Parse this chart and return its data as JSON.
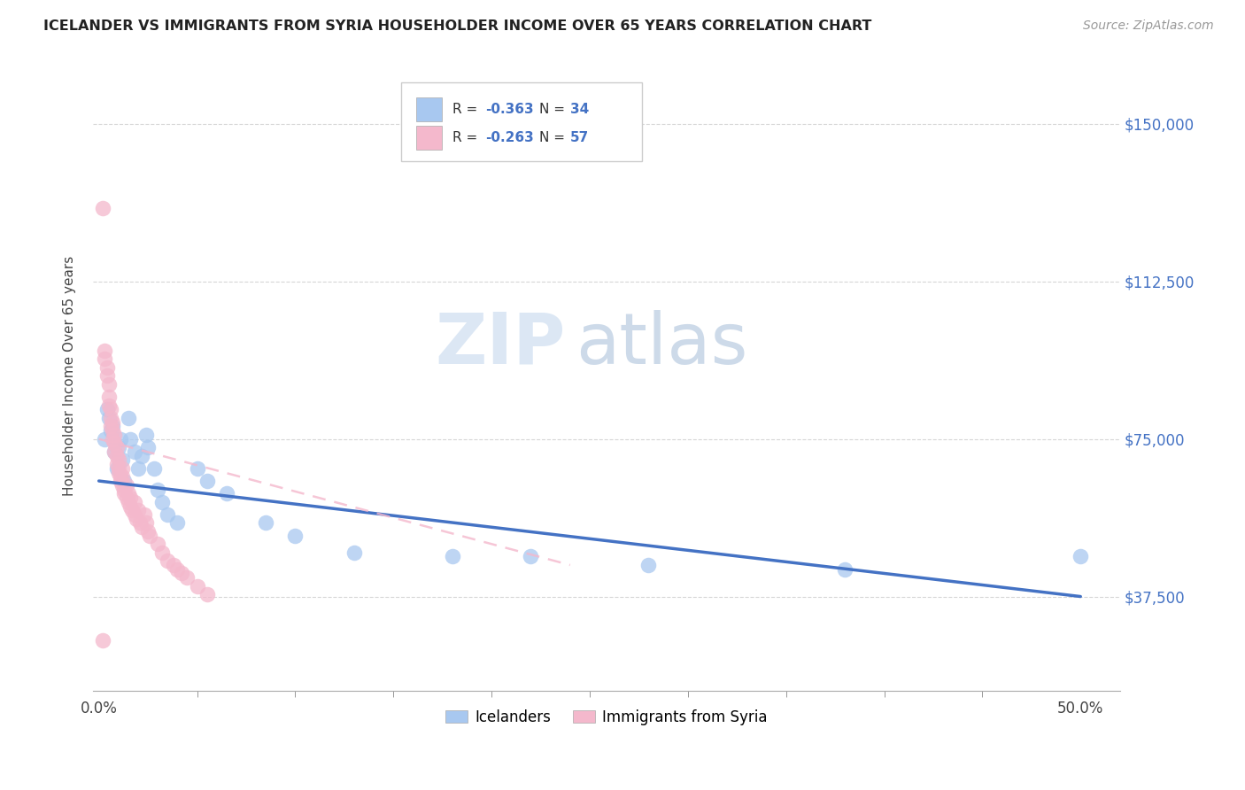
{
  "title": "ICELANDER VS IMMIGRANTS FROM SYRIA HOUSEHOLDER INCOME OVER 65 YEARS CORRELATION CHART",
  "source": "Source: ZipAtlas.com",
  "ylabel": "Householder Income Over 65 years",
  "xlabel_ticks": [
    "0.0%",
    "50.0%"
  ],
  "xlabel_vals": [
    0.0,
    0.5
  ],
  "ytick_labels": [
    "$150,000",
    "$112,500",
    "$75,000",
    "$37,500"
  ],
  "ytick_vals": [
    150000,
    112500,
    75000,
    37500
  ],
  "ylim": [
    15000,
    165000
  ],
  "xlim": [
    -0.003,
    0.52
  ],
  "legend_r_blue": "-0.363",
  "legend_n_blue": "34",
  "legend_r_pink": "-0.263",
  "legend_n_pink": "57",
  "legend_label_blue": "Icelanders",
  "legend_label_pink": "Immigrants from Syria",
  "blue_color": "#a8c8f0",
  "pink_color": "#f4b8cc",
  "blue_line_color": "#4472c4",
  "pink_line_color": "#f4b8cc",
  "watermark_zip": "ZIP",
  "watermark_atlas": "atlas",
  "blue_x": [
    0.003,
    0.004,
    0.005,
    0.006,
    0.007,
    0.008,
    0.009,
    0.01,
    0.011,
    0.012,
    0.013,
    0.015,
    0.016,
    0.018,
    0.02,
    0.022,
    0.024,
    0.025,
    0.028,
    0.03,
    0.032,
    0.035,
    0.04,
    0.05,
    0.055,
    0.065,
    0.085,
    0.1,
    0.13,
    0.18,
    0.22,
    0.28,
    0.38,
    0.5
  ],
  "blue_y": [
    75000,
    82000,
    80000,
    77000,
    78000,
    72000,
    68000,
    73000,
    75000,
    70000,
    65000,
    80000,
    75000,
    72000,
    68000,
    71000,
    76000,
    73000,
    68000,
    63000,
    60000,
    57000,
    55000,
    68000,
    65000,
    62000,
    55000,
    52000,
    48000,
    47000,
    47000,
    45000,
    44000,
    47000
  ],
  "pink_x": [
    0.002,
    0.003,
    0.003,
    0.004,
    0.004,
    0.005,
    0.005,
    0.005,
    0.006,
    0.006,
    0.006,
    0.007,
    0.007,
    0.007,
    0.008,
    0.008,
    0.008,
    0.009,
    0.009,
    0.009,
    0.01,
    0.01,
    0.01,
    0.011,
    0.011,
    0.012,
    0.012,
    0.012,
    0.013,
    0.013,
    0.014,
    0.014,
    0.015,
    0.015,
    0.016,
    0.016,
    0.017,
    0.018,
    0.018,
    0.019,
    0.02,
    0.021,
    0.022,
    0.023,
    0.024,
    0.025,
    0.026,
    0.03,
    0.032,
    0.035,
    0.038,
    0.04,
    0.042,
    0.045,
    0.05,
    0.055,
    0.002
  ],
  "pink_y": [
    130000,
    96000,
    94000,
    92000,
    90000,
    88000,
    85000,
    83000,
    82000,
    80000,
    78000,
    79000,
    77000,
    75000,
    76000,
    74000,
    72000,
    73000,
    71000,
    69000,
    70000,
    68000,
    67000,
    66000,
    65000,
    68000,
    66000,
    64000,
    63000,
    62000,
    64000,
    61000,
    62000,
    60000,
    61000,
    59000,
    58000,
    57000,
    60000,
    56000,
    58000,
    55000,
    54000,
    57000,
    55000,
    53000,
    52000,
    50000,
    48000,
    46000,
    45000,
    44000,
    43000,
    42000,
    40000,
    38000,
    27000
  ],
  "blue_trend_x": [
    0.0,
    0.5
  ],
  "blue_trend_y": [
    65000,
    37500
  ],
  "pink_trend_x": [
    0.0,
    0.24
  ],
  "pink_trend_y": [
    75000,
    45000
  ]
}
